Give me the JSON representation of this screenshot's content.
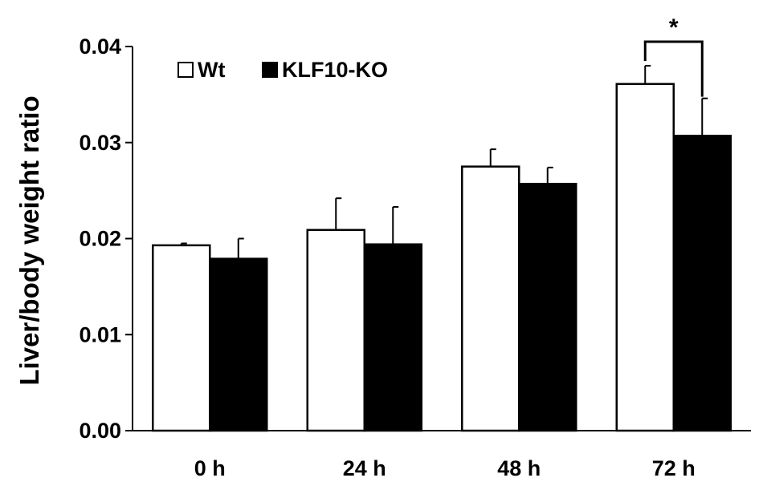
{
  "chart_data": {
    "type": "bar",
    "ylabel": "Liver/body weight ratio",
    "categories": [
      "0 h",
      "24 h",
      "48 h",
      "72 h"
    ],
    "yticks": [
      "0.00",
      "0.01",
      "0.02",
      "0.03",
      "0.04"
    ],
    "ylim": [
      0,
      0.04
    ],
    "grid": false,
    "legend_position": "top-left",
    "series": [
      {
        "name": "Wt",
        "color": "#ffffff",
        "values": [
          0.0193,
          0.0209,
          0.0275,
          0.0361
        ],
        "errors": [
          0.0002,
          0.0033,
          0.0018,
          0.0019
        ]
      },
      {
        "name": "KLF10-KO",
        "color": "#000000",
        "values": [
          0.0179,
          0.0194,
          0.0257,
          0.0307
        ],
        "errors": [
          0.0021,
          0.0039,
          0.0017,
          0.0039
        ]
      }
    ],
    "annotations": [
      {
        "text": "*",
        "category": "72 h"
      }
    ]
  }
}
